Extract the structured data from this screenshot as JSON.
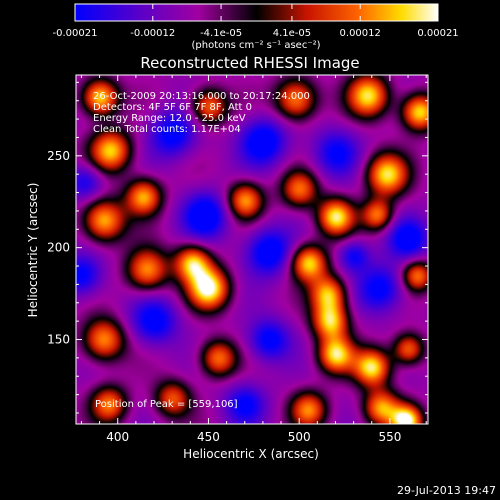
{
  "window": {
    "timestamp": "29-Jul-2013 19:47"
  },
  "colorbar": {
    "tick_labels": [
      "-0.00021",
      "-0.00012",
      "-4.1e-05",
      "4.1e-05",
      "0.00012",
      "0.00021"
    ],
    "tick_values": [
      -0.00021,
      -0.00012,
      -4.1e-05,
      4.1e-05,
      0.00012,
      0.00021
    ],
    "range": [
      -0.00021,
      0.00021
    ],
    "units_label": "(photons cm⁻² s⁻¹ asec⁻²)",
    "colors": [
      "#0000ff",
      "#5a00c8",
      "#a000a0",
      "#000000",
      "#c81400",
      "#ff6400",
      "#ffdc00",
      "#ffffff"
    ]
  },
  "chart_data": {
    "type": "heatmap",
    "title": "Reconstructed RHESSI Image",
    "xlabel": "Heliocentric X (arcsec)",
    "ylabel": "Heliocentric Y (arcsec)",
    "xlim": [
      377,
      571
    ],
    "ylim": [
      104,
      294
    ],
    "xticks": [
      400,
      450,
      500,
      550
    ],
    "yticks": [
      150,
      200,
      250
    ],
    "annotations": [
      "26-Oct-2009 20:13:16.000 to 20:17:24.000",
      "Detectors: 4F 5F 6F 7F 8F, Att 0",
      "Energy Range: 12.0 - 25.0 keV",
      "Clean    Total counts: 1.17E+04"
    ],
    "peak_label": "Position of Peak = [559,106]",
    "peak_position": [
      559,
      106
    ],
    "blobs": [
      {
        "x": 390,
        "y": 282,
        "v": 0.9,
        "s": 7
      },
      {
        "x": 450,
        "y": 277,
        "v": 0.6,
        "s": 7
      },
      {
        "x": 498,
        "y": 281,
        "v": 0.7,
        "s": 8
      },
      {
        "x": 538,
        "y": 283,
        "v": 0.85,
        "s": 8
      },
      {
        "x": 566,
        "y": 274,
        "v": 0.9,
        "s": 7
      },
      {
        "x": 396,
        "y": 253,
        "v": 0.8,
        "s": 8
      },
      {
        "x": 430,
        "y": 262,
        "v": -0.6,
        "s": 9
      },
      {
        "x": 480,
        "y": 258,
        "v": -0.7,
        "s": 9
      },
      {
        "x": 520,
        "y": 252,
        "v": -0.5,
        "s": 9
      },
      {
        "x": 548,
        "y": 240,
        "v": 0.85,
        "s": 8
      },
      {
        "x": 392,
        "y": 215,
        "v": 0.8,
        "s": 8
      },
      {
        "x": 414,
        "y": 228,
        "v": 0.75,
        "s": 7
      },
      {
        "x": 448,
        "y": 218,
        "v": -0.7,
        "s": 9
      },
      {
        "x": 470,
        "y": 226,
        "v": 0.7,
        "s": 7
      },
      {
        "x": 500,
        "y": 232,
        "v": 0.55,
        "s": 7
      },
      {
        "x": 520,
        "y": 217,
        "v": 0.9,
        "s": 7
      },
      {
        "x": 543,
        "y": 218,
        "v": 0.6,
        "s": 6
      },
      {
        "x": 560,
        "y": 205,
        "v": -0.6,
        "s": 8
      },
      {
        "x": 380,
        "y": 185,
        "v": -0.6,
        "s": 8
      },
      {
        "x": 416,
        "y": 188,
        "v": 0.7,
        "s": 8
      },
      {
        "x": 441,
        "y": 192,
        "v": 0.8,
        "s": 7
      },
      {
        "x": 450,
        "y": 178,
        "v": 1.0,
        "s": 8
      },
      {
        "x": 483,
        "y": 198,
        "v": -0.7,
        "s": 9
      },
      {
        "x": 505,
        "y": 192,
        "v": 0.85,
        "s": 7
      },
      {
        "x": 516,
        "y": 175,
        "v": 0.75,
        "s": 7
      },
      {
        "x": 545,
        "y": 178,
        "v": -0.6,
        "s": 9
      },
      {
        "x": 565,
        "y": 185,
        "v": 0.6,
        "s": 6
      },
      {
        "x": 392,
        "y": 150,
        "v": 0.7,
        "s": 8
      },
      {
        "x": 420,
        "y": 160,
        "v": -0.6,
        "s": 9
      },
      {
        "x": 455,
        "y": 140,
        "v": 0.6,
        "s": 7
      },
      {
        "x": 483,
        "y": 150,
        "v": -0.6,
        "s": 8
      },
      {
        "x": 517,
        "y": 160,
        "v": 0.8,
        "s": 7
      },
      {
        "x": 520,
        "y": 142,
        "v": 0.85,
        "s": 7
      },
      {
        "x": 540,
        "y": 135,
        "v": 0.9,
        "s": 7
      },
      {
        "x": 560,
        "y": 145,
        "v": 0.6,
        "s": 6
      },
      {
        "x": 395,
        "y": 115,
        "v": 0.6,
        "s": 7
      },
      {
        "x": 430,
        "y": 118,
        "v": 0.5,
        "s": 7
      },
      {
        "x": 470,
        "y": 115,
        "v": -0.5,
        "s": 8
      },
      {
        "x": 505,
        "y": 112,
        "v": 0.6,
        "s": 7
      },
      {
        "x": 545,
        "y": 113,
        "v": 0.7,
        "s": 7
      },
      {
        "x": 559,
        "y": 106,
        "v": 1.0,
        "s": 6
      },
      {
        "x": 382,
        "y": 236,
        "v": -0.5,
        "s": 7
      },
      {
        "x": 530,
        "y": 196,
        "v": -0.5,
        "s": 6
      }
    ]
  }
}
